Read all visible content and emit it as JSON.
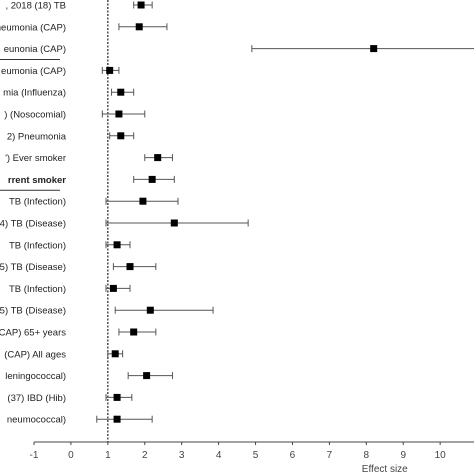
{
  "chart_data": {
    "type": "scatter",
    "style": "forest plot (point estimates with confidence-interval whiskers)",
    "xlabel": "Effect size",
    "xlim": [
      -1,
      10.7
    ],
    "xticks": [
      "-1",
      "0",
      "1",
      "2",
      "3",
      "4",
      "5",
      "6",
      "7",
      "8",
      "9",
      "10"
    ],
    "reference_line_x": 1,
    "reference_line_style": "dashed",
    "rows": [
      {
        "label": ", 2018 (18) TB",
        "value": 1.9,
        "lower": 1.7,
        "upper": 2.2,
        "bold": false
      },
      {
        "label": "neumonia (CAP)",
        "value": 1.85,
        "lower": 1.3,
        "upper": 2.6,
        "bold": false
      },
      {
        "label": "eunonia (CAP)",
        "value": 8.2,
        "lower": 4.9,
        "upper": 11.2,
        "bold": false
      },
      {
        "label": "eumonia (CAP)",
        "value": 1.05,
        "lower": 0.85,
        "upper": 1.3,
        "bold": false
      },
      {
        "label": "mia (Influenza)",
        "value": 1.35,
        "lower": 1.1,
        "upper": 1.7,
        "bold": false
      },
      {
        "label": ") (Nosocomial)",
        "value": 1.3,
        "lower": 0.85,
        "upper": 2.0,
        "bold": false
      },
      {
        "label": "2) Pneumonia",
        "value": 1.35,
        "lower": 1.05,
        "upper": 1.7,
        "bold": false
      },
      {
        "label": "') Ever smoker",
        "value": 2.35,
        "lower": 2.0,
        "upper": 2.75,
        "bold": false
      },
      {
        "label": "rrent smoker",
        "value": 2.2,
        "lower": 1.7,
        "upper": 2.8,
        "bold": true
      },
      {
        "label": "TB (Infection)",
        "value": 1.95,
        "lower": 0.95,
        "upper": 2.9,
        "bold": false
      },
      {
        "label": "4) TB (Disease)",
        "value": 2.8,
        "lower": 0.95,
        "upper": 4.8,
        "bold": false
      },
      {
        "label": "TB (Infection)",
        "value": 1.25,
        "lower": 0.95,
        "upper": 1.6,
        "bold": false
      },
      {
        "label": "5) TB (Disease)",
        "value": 1.6,
        "lower": 1.15,
        "upper": 2.3,
        "bold": false
      },
      {
        "label": "TB (Infection)",
        "value": 1.15,
        "lower": 0.95,
        "upper": 1.6,
        "bold": false
      },
      {
        "label": "5) TB (Disease)",
        "value": 2.15,
        "lower": 1.2,
        "upper": 3.85,
        "bold": false
      },
      {
        "label": "CAP) 65+ years",
        "value": 1.7,
        "lower": 1.3,
        "upper": 2.3,
        "bold": false
      },
      {
        "label": "(CAP) All ages",
        "value": 1.2,
        "lower": 1.0,
        "upper": 1.4,
        "bold": false
      },
      {
        "label": "leningococcal)",
        "value": 2.05,
        "lower": 1.55,
        "upper": 2.75,
        "bold": false
      },
      {
        "label": "(37) IBD (Hib)",
        "value": 1.25,
        "lower": 0.95,
        "upper": 1.65,
        "bold": false
      },
      {
        "label": "neumococcal)",
        "value": 1.25,
        "lower": 0.7,
        "upper": 2.2,
        "bold": false
      }
    ],
    "separators_after_rows": [
      2,
      8
    ],
    "colors": {
      "marker": "#000000",
      "whisker": "#555555",
      "axis": "#444444"
    }
  }
}
